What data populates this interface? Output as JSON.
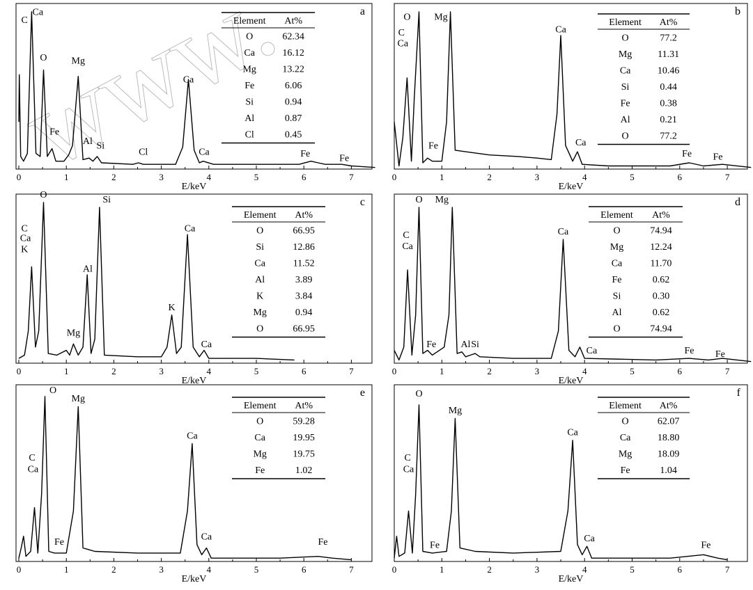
{
  "watermark": "www.",
  "chart_data": [
    {
      "type": "line",
      "panel_label": "a",
      "xlabel": "E/keV",
      "xlim": [
        0,
        7.5
      ],
      "xticks": [
        0,
        1,
        2,
        3,
        4,
        5,
        6,
        7
      ],
      "grid": false,
      "spectrum": [
        [
          0,
          0.3
        ],
        [
          0.01,
          0.6
        ],
        [
          0.04,
          0.08
        ],
        [
          0.1,
          0.05
        ],
        [
          0.18,
          0.1
        ],
        [
          0.27,
          1.0
        ],
        [
          0.36,
          0.1
        ],
        [
          0.45,
          0.08
        ],
        [
          0.52,
          0.63
        ],
        [
          0.6,
          0.08
        ],
        [
          0.7,
          0.13
        ],
        [
          0.78,
          0.05
        ],
        [
          0.95,
          0.05
        ],
        [
          1.05,
          0.09
        ],
        [
          1.13,
          0.15
        ],
        [
          1.25,
          0.59
        ],
        [
          1.35,
          0.06
        ],
        [
          1.48,
          0.07
        ],
        [
          1.56,
          0.05
        ],
        [
          1.65,
          0.08
        ],
        [
          1.74,
          0.04
        ],
        [
          2.4,
          0.03
        ],
        [
          2.52,
          0.04
        ],
        [
          2.62,
          0.03
        ],
        [
          3.3,
          0.03
        ],
        [
          3.45,
          0.14
        ],
        [
          3.57,
          0.57
        ],
        [
          3.69,
          0.12
        ],
        [
          3.8,
          0.04
        ],
        [
          3.88,
          0.05
        ],
        [
          4.1,
          0.03
        ],
        [
          5.0,
          0.03
        ],
        [
          5.9,
          0.03
        ],
        [
          6.15,
          0.05
        ],
        [
          6.3,
          0.04
        ],
        [
          6.45,
          0.03
        ],
        [
          6.8,
          0.03
        ],
        [
          7.0,
          0.02
        ],
        [
          7.5,
          0.01
        ]
      ],
      "peak_labels": [
        {
          "text": "C",
          "x": 0.12,
          "y": 0.93
        },
        {
          "text": "Ca",
          "x": 0.4,
          "y": 0.98
        },
        {
          "text": "O",
          "x": 0.52,
          "y": 0.69
        },
        {
          "text": "Mg",
          "x": 1.25,
          "y": 0.67
        },
        {
          "text": "Fe",
          "x": 0.75,
          "y": 0.22
        },
        {
          "text": "Al",
          "x": 1.45,
          "y": 0.16
        },
        {
          "text": "Si",
          "x": 1.72,
          "y": 0.13
        },
        {
          "text": "Cl",
          "x": 2.62,
          "y": 0.09
        },
        {
          "text": "Ca",
          "x": 3.57,
          "y": 0.55
        },
        {
          "text": "Ca",
          "x": 3.9,
          "y": 0.09
        },
        {
          "text": "Fe",
          "x": 6.03,
          "y": 0.08
        },
        {
          "text": "Fe",
          "x": 6.85,
          "y": 0.05
        }
      ],
      "table": {
        "headers": [
          "Element",
          "At%"
        ],
        "rows": [
          [
            "O",
            "62.34"
          ],
          [
            "Ca",
            "16.12"
          ],
          [
            "Mg",
            "13.22"
          ],
          [
            "Fe",
            "6.06"
          ],
          [
            "Si",
            "0.94"
          ],
          [
            "Al",
            "0.87"
          ],
          [
            "Cl",
            "0.45"
          ]
        ]
      }
    },
    {
      "type": "line",
      "panel_label": "b",
      "xlabel": "E/keV",
      "xlim": [
        0,
        7.5
      ],
      "xticks": [
        0,
        1,
        2,
        3,
        4,
        5,
        6,
        7
      ],
      "grid": false,
      "spectrum": [
        [
          0,
          0.3
        ],
        [
          0.1,
          0.02
        ],
        [
          0.18,
          0.2
        ],
        [
          0.27,
          0.58
        ],
        [
          0.36,
          0.05
        ],
        [
          0.42,
          0.45
        ],
        [
          0.52,
          1.0
        ],
        [
          0.6,
          0.04
        ],
        [
          0.7,
          0.07
        ],
        [
          0.8,
          0.05
        ],
        [
          1.0,
          0.05
        ],
        [
          1.1,
          0.3
        ],
        [
          1.18,
          1.0
        ],
        [
          1.28,
          0.12
        ],
        [
          1.5,
          0.11
        ],
        [
          2.0,
          0.09
        ],
        [
          2.6,
          0.08
        ],
        [
          3.0,
          0.07
        ],
        [
          3.3,
          0.06
        ],
        [
          3.42,
          0.35
        ],
        [
          3.5,
          0.85
        ],
        [
          3.6,
          0.15
        ],
        [
          3.75,
          0.05
        ],
        [
          3.85,
          0.11
        ],
        [
          3.95,
          0.03
        ],
        [
          4.5,
          0.02
        ],
        [
          5.8,
          0.02
        ],
        [
          6.2,
          0.04
        ],
        [
          6.5,
          0.02
        ],
        [
          6.9,
          0.03
        ],
        [
          7.5,
          0.01
        ]
      ],
      "peak_labels": [
        {
          "text": "O",
          "x": 0.27,
          "y": 0.95
        },
        {
          "text": "Mg",
          "x": 0.98,
          "y": 0.95
        },
        {
          "text": "C",
          "x": 0.15,
          "y": 0.85
        },
        {
          "text": "Ca",
          "x": 0.18,
          "y": 0.78
        },
        {
          "text": "Fe",
          "x": 0.82,
          "y": 0.13
        },
        {
          "text": "Ca",
          "x": 3.5,
          "y": 0.87
        },
        {
          "text": "Ca",
          "x": 3.92,
          "y": 0.15
        },
        {
          "text": "Fe",
          "x": 6.15,
          "y": 0.08
        },
        {
          "text": "Fe",
          "x": 6.8,
          "y": 0.06
        }
      ],
      "table": {
        "headers": [
          "Element",
          "At%"
        ],
        "rows": [
          [
            "O",
            "77.2"
          ],
          [
            "Mg",
            "11.31"
          ],
          [
            "Ca",
            "10.46"
          ],
          [
            "Si",
            "0.44"
          ],
          [
            "Fe",
            "0.38"
          ],
          [
            "Al",
            "0.21"
          ],
          [
            "O",
            "77.2"
          ]
        ]
      }
    },
    {
      "type": "line",
      "panel_label": "c",
      "xlabel": "E/keV",
      "xlim": [
        0,
        7.5
      ],
      "xticks": [
        0,
        1,
        2,
        3,
        4,
        5,
        6,
        7
      ],
      "grid": false,
      "spectrum": [
        [
          0,
          0.03
        ],
        [
          0.12,
          0.05
        ],
        [
          0.2,
          0.2
        ],
        [
          0.27,
          0.6
        ],
        [
          0.35,
          0.1
        ],
        [
          0.42,
          0.2
        ],
        [
          0.52,
          1.0
        ],
        [
          0.62,
          0.06
        ],
        [
          0.8,
          0.05
        ],
        [
          1.0,
          0.08
        ],
        [
          1.07,
          0.05
        ],
        [
          1.15,
          0.12
        ],
        [
          1.25,
          0.05
        ],
        [
          1.35,
          0.1
        ],
        [
          1.44,
          0.55
        ],
        [
          1.52,
          0.06
        ],
        [
          1.6,
          0.15
        ],
        [
          1.7,
          0.97
        ],
        [
          1.8,
          0.05
        ],
        [
          2.5,
          0.04
        ],
        [
          3.0,
          0.04
        ],
        [
          3.12,
          0.1
        ],
        [
          3.22,
          0.3
        ],
        [
          3.32,
          0.06
        ],
        [
          3.42,
          0.1
        ],
        [
          3.55,
          0.8
        ],
        [
          3.67,
          0.1
        ],
        [
          3.8,
          0.04
        ],
        [
          3.9,
          0.08
        ],
        [
          4.0,
          0.03
        ],
        [
          5.0,
          0.03
        ],
        [
          5.8,
          0.02
        ]
      ],
      "peak_labels": [
        {
          "text": "C",
          "x": 0.12,
          "y": 0.82
        },
        {
          "text": "Ca",
          "x": 0.14,
          "y": 0.76
        },
        {
          "text": "K",
          "x": 0.12,
          "y": 0.69
        },
        {
          "text": "O",
          "x": 0.52,
          "y": 1.03
        },
        {
          "text": "Si",
          "x": 1.85,
          "y": 1.0
        },
        {
          "text": "Al",
          "x": 1.45,
          "y": 0.57
        },
        {
          "text": "Mg",
          "x": 1.15,
          "y": 0.17
        },
        {
          "text": "K",
          "x": 3.22,
          "y": 0.33
        },
        {
          "text": "Ca",
          "x": 3.6,
          "y": 0.82
        },
        {
          "text": "Ca",
          "x": 3.95,
          "y": 0.1
        }
      ],
      "table": {
        "headers": [
          "Element",
          "At%"
        ],
        "rows": [
          [
            "O",
            "66.95"
          ],
          [
            "Si",
            "12.86"
          ],
          [
            "Ca",
            "11.52"
          ],
          [
            "Al",
            "3.89"
          ],
          [
            "K",
            "3.84"
          ],
          [
            "Mg",
            "0.94"
          ],
          [
            "O",
            "66.95"
          ]
        ]
      }
    },
    {
      "type": "line",
      "panel_label": "d",
      "xlabel": "E/keV",
      "xlim": [
        0,
        7.5
      ],
      "xticks": [
        0,
        1,
        2,
        3,
        4,
        5,
        6,
        7
      ],
      "grid": false,
      "spectrum": [
        [
          0,
          0.08
        ],
        [
          0.1,
          0.02
        ],
        [
          0.2,
          0.1
        ],
        [
          0.28,
          0.58
        ],
        [
          0.37,
          0.05
        ],
        [
          0.45,
          0.3
        ],
        [
          0.52,
          0.97
        ],
        [
          0.6,
          0.06
        ],
        [
          0.7,
          0.08
        ],
        [
          0.8,
          0.05
        ],
        [
          1.05,
          0.1
        ],
        [
          1.15,
          0.3
        ],
        [
          1.22,
          0.97
        ],
        [
          1.32,
          0.06
        ],
        [
          1.42,
          0.07
        ],
        [
          1.5,
          0.04
        ],
        [
          1.6,
          0.05
        ],
        [
          1.7,
          0.06
        ],
        [
          1.8,
          0.04
        ],
        [
          2.5,
          0.03
        ],
        [
          3.3,
          0.03
        ],
        [
          3.45,
          0.2
        ],
        [
          3.55,
          0.77
        ],
        [
          3.67,
          0.08
        ],
        [
          3.8,
          0.04
        ],
        [
          3.9,
          0.1
        ],
        [
          4.0,
          0.03
        ],
        [
          5.5,
          0.02
        ],
        [
          6.2,
          0.03
        ],
        [
          6.6,
          0.02
        ],
        [
          6.9,
          0.03
        ],
        [
          7.5,
          0.01
        ]
      ],
      "peak_labels": [
        {
          "text": "O",
          "x": 0.52,
          "y": 1.0
        },
        {
          "text": "Mg",
          "x": 1.0,
          "y": 1.0
        },
        {
          "text": "C",
          "x": 0.25,
          "y": 0.78
        },
        {
          "text": "Ca",
          "x": 0.28,
          "y": 0.71
        },
        {
          "text": "Fe",
          "x": 0.78,
          "y": 0.1
        },
        {
          "text": "Al",
          "x": 1.5,
          "y": 0.1
        },
        {
          "text": "Si",
          "x": 1.7,
          "y": 0.1
        },
        {
          "text": "Ca",
          "x": 3.55,
          "y": 0.8
        },
        {
          "text": "Ca",
          "x": 4.15,
          "y": 0.06
        },
        {
          "text": "Fe",
          "x": 6.2,
          "y": 0.06
        },
        {
          "text": "Fe",
          "x": 6.85,
          "y": 0.04
        }
      ],
      "table": {
        "headers": [
          "Element",
          "At%"
        ],
        "rows": [
          [
            "O",
            "74.94"
          ],
          [
            "Mg",
            "12.24"
          ],
          [
            "Ca",
            "11.70"
          ],
          [
            "Fe",
            "0.62"
          ],
          [
            "Si",
            "0.30"
          ],
          [
            "Al",
            "0.62"
          ],
          [
            "O",
            "74.94"
          ]
        ]
      }
    },
    {
      "type": "line",
      "panel_label": "e",
      "xlabel": "E/keV",
      "xlim": [
        0,
        7.5
      ],
      "xticks": [
        0,
        1,
        2,
        3,
        4,
        5,
        6,
        7
      ],
      "grid": false,
      "spectrum": [
        [
          0,
          0.02
        ],
        [
          0.05,
          0.08
        ],
        [
          0.1,
          0.15
        ],
        [
          0.15,
          0.03
        ],
        [
          0.25,
          0.06
        ],
        [
          0.33,
          0.32
        ],
        [
          0.4,
          0.05
        ],
        [
          0.48,
          0.4
        ],
        [
          0.55,
          0.98
        ],
        [
          0.63,
          0.06
        ],
        [
          0.75,
          0.05
        ],
        [
          1.0,
          0.05
        ],
        [
          1.15,
          0.3
        ],
        [
          1.25,
          0.92
        ],
        [
          1.35,
          0.08
        ],
        [
          1.6,
          0.06
        ],
        [
          2.5,
          0.05
        ],
        [
          3.4,
          0.05
        ],
        [
          3.55,
          0.3
        ],
        [
          3.65,
          0.7
        ],
        [
          3.75,
          0.1
        ],
        [
          3.85,
          0.04
        ],
        [
          3.95,
          0.08
        ],
        [
          4.05,
          0.02
        ],
        [
          5.5,
          0.02
        ],
        [
          6.3,
          0.03
        ],
        [
          6.6,
          0.02
        ],
        [
          7.0,
          0.01
        ]
      ],
      "peak_labels": [
        {
          "text": "O",
          "x": 0.72,
          "y": 1.0
        },
        {
          "text": "Mg",
          "x": 1.25,
          "y": 0.95
        },
        {
          "text": "C",
          "x": 0.28,
          "y": 0.6
        },
        {
          "text": "Ca",
          "x": 0.3,
          "y": 0.53
        },
        {
          "text": "Fe",
          "x": 0.85,
          "y": 0.1
        },
        {
          "text": "Ca",
          "x": 3.65,
          "y": 0.73
        },
        {
          "text": "Ca",
          "x": 3.95,
          "y": 0.13
        },
        {
          "text": "Fe",
          "x": 6.4,
          "y": 0.1
        }
      ],
      "table": {
        "headers": [
          "Element",
          "At%"
        ],
        "rows": [
          [
            "O",
            "59.28"
          ],
          [
            "Ca",
            "19.95"
          ],
          [
            "Mg",
            "19.75"
          ],
          [
            "Fe",
            "1.02"
          ]
        ]
      }
    },
    {
      "type": "line",
      "panel_label": "f",
      "xlabel": "E/keV",
      "xlim": [
        0,
        7.5
      ],
      "xticks": [
        0,
        1,
        2,
        3,
        4,
        5,
        6,
        7
      ],
      "grid": false,
      "spectrum": [
        [
          0,
          0.02
        ],
        [
          0.05,
          0.15
        ],
        [
          0.1,
          0.03
        ],
        [
          0.22,
          0.05
        ],
        [
          0.3,
          0.3
        ],
        [
          0.38,
          0.05
        ],
        [
          0.45,
          0.4
        ],
        [
          0.52,
          0.93
        ],
        [
          0.6,
          0.06
        ],
        [
          0.8,
          0.05
        ],
        [
          1.1,
          0.06
        ],
        [
          1.2,
          0.3
        ],
        [
          1.28,
          0.85
        ],
        [
          1.38,
          0.08
        ],
        [
          1.7,
          0.06
        ],
        [
          2.5,
          0.05
        ],
        [
          3.5,
          0.06
        ],
        [
          3.65,
          0.3
        ],
        [
          3.75,
          0.72
        ],
        [
          3.85,
          0.1
        ],
        [
          3.95,
          0.04
        ],
        [
          4.05,
          0.09
        ],
        [
          4.15,
          0.02
        ],
        [
          5.8,
          0.02
        ],
        [
          6.5,
          0.04
        ],
        [
          6.8,
          0.02
        ],
        [
          7.0,
          0.01
        ]
      ],
      "peak_labels": [
        {
          "text": "O",
          "x": 0.52,
          "y": 0.98
        },
        {
          "text": "Mg",
          "x": 1.28,
          "y": 0.88
        },
        {
          "text": "C",
          "x": 0.28,
          "y": 0.6
        },
        {
          "text": "Ca",
          "x": 0.3,
          "y": 0.53
        },
        {
          "text": "Fe",
          "x": 0.85,
          "y": 0.08
        },
        {
          "text": "Ca",
          "x": 3.75,
          "y": 0.75
        },
        {
          "text": "Ca",
          "x": 4.1,
          "y": 0.12
        },
        {
          "text": "Fe",
          "x": 6.55,
          "y": 0.08
        }
      ],
      "table": {
        "headers": [
          "Element",
          "At%"
        ],
        "rows": [
          [
            "O",
            "62.07"
          ],
          [
            "Ca",
            "18.80"
          ],
          [
            "Mg",
            "18.09"
          ],
          [
            "Fe",
            "1.04"
          ]
        ]
      }
    }
  ]
}
